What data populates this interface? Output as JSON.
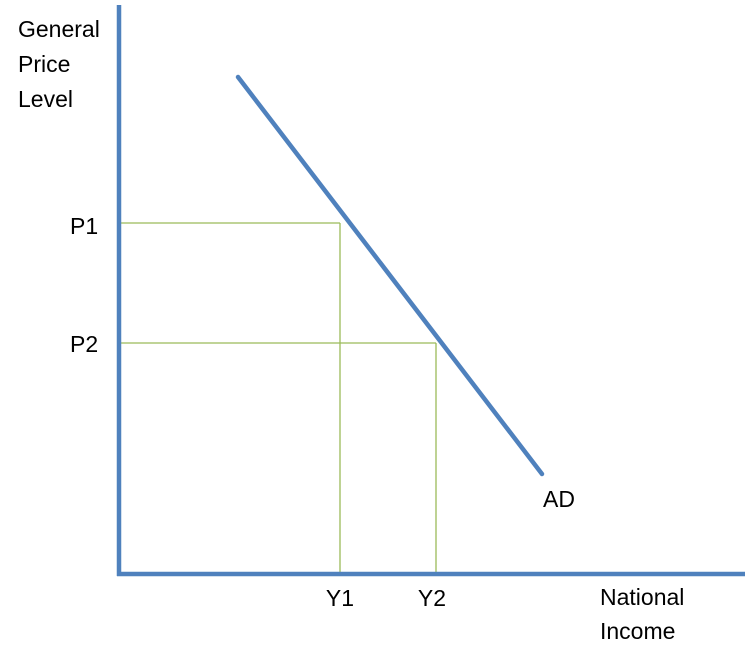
{
  "y_axis_label": [
    "General",
    "Price",
    "Level"
  ],
  "x_axis_label": [
    "National",
    "Income"
  ],
  "price_levels": [
    "P1",
    "P2"
  ],
  "income_levels": [
    "Y1",
    "Y2"
  ],
  "curve_label": "AD"
}
